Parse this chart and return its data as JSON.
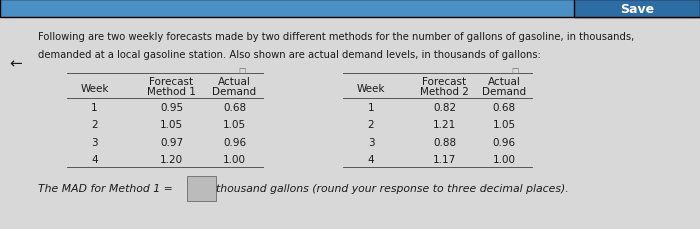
{
  "bg_color": "#d8d8d8",
  "top_bar_color": "#4a90c4",
  "save_btn_color": "#2e6da4",
  "header_text_line1": "Following are two weekly forecasts made by two different methods for the number of gallons of gasoline, in thousands,",
  "header_text_line2": "demanded at a local gasoline station. Also shown are actual demand levels, in thousands of gallons:",
  "arrow_symbol": "←",
  "table1_data": [
    [
      1,
      0.95,
      0.68
    ],
    [
      2,
      1.05,
      1.05
    ],
    [
      3,
      0.97,
      0.96
    ],
    [
      4,
      1.2,
      1.0
    ]
  ],
  "table2_data": [
    [
      1,
      0.82,
      0.68
    ],
    [
      2,
      1.21,
      1.05
    ],
    [
      3,
      0.88,
      0.96
    ],
    [
      4,
      1.17,
      1.0
    ]
  ],
  "footer_text": "The MAD for Method 1 = ",
  "footer_suffix": "thousand gallons (round your response to three decimal places).",
  "text_color": "#1a1a1a",
  "table_line_color": "#555555",
  "header_fontsize": 7.2,
  "table_fontsize": 7.5,
  "footer_fontsize": 7.8,
  "save_fontsize": 9.0
}
